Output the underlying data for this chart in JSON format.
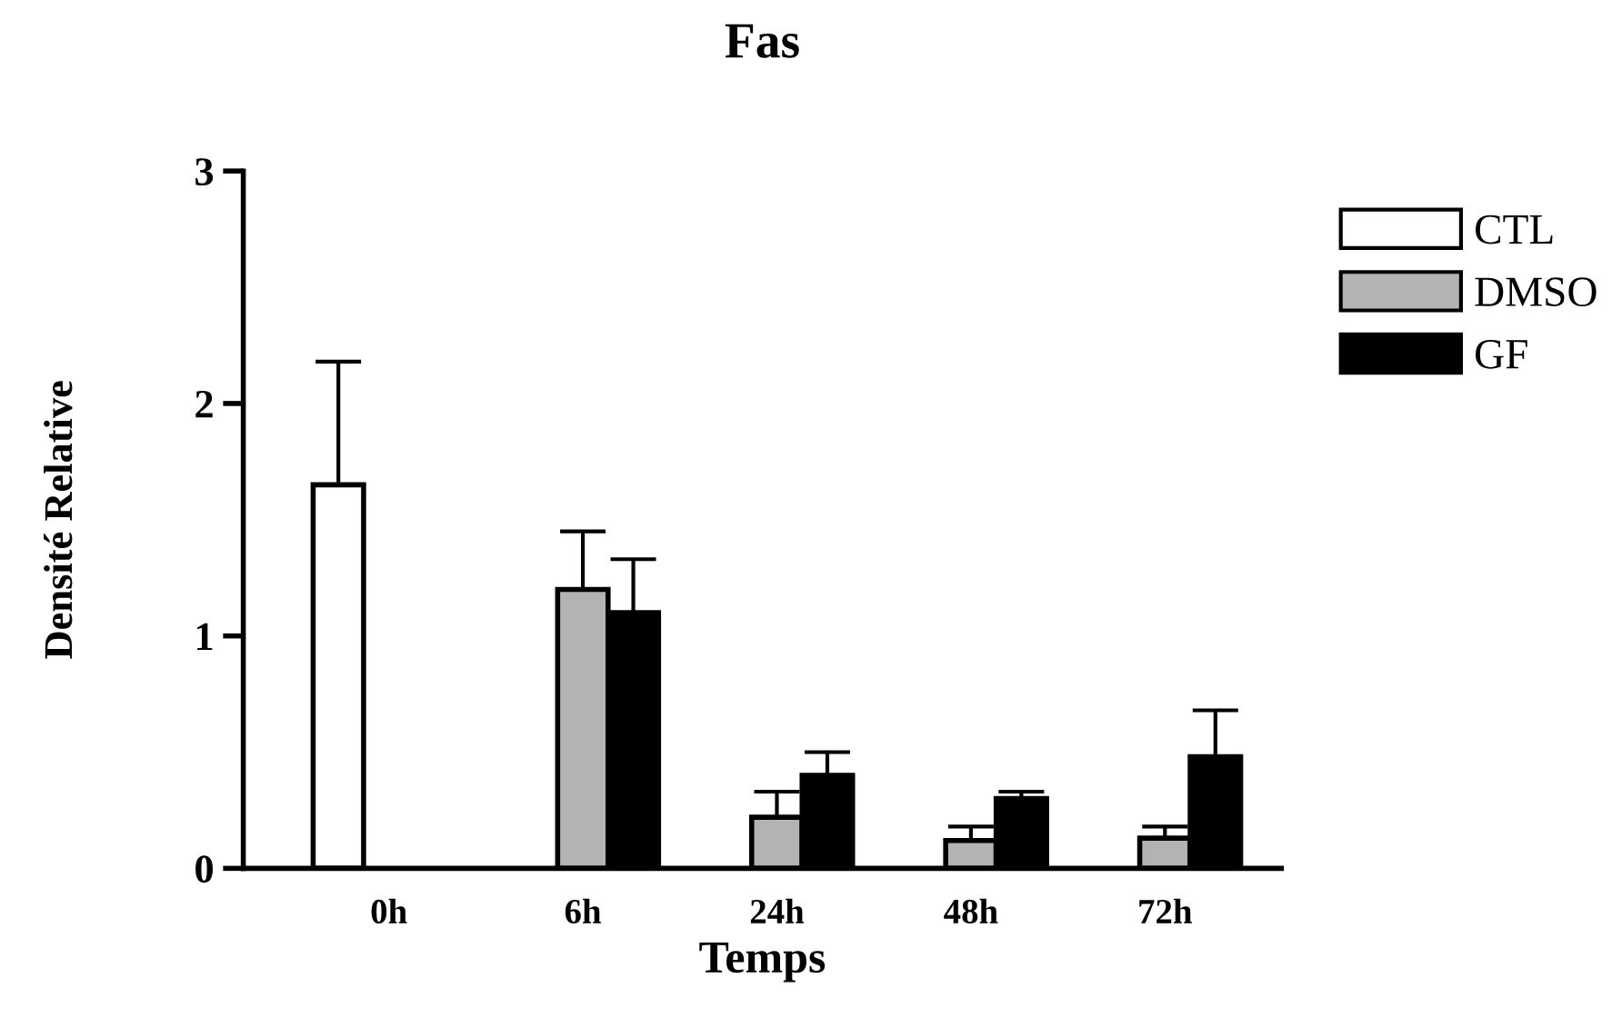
{
  "chart_data": {
    "type": "bar",
    "title": "Fas",
    "xlabel": "Temps",
    "ylabel": "Densité Relative",
    "categories": [
      "0h",
      "6h",
      "24h",
      "48h",
      "72h"
    ],
    "series": [
      {
        "name": "CTL",
        "color": "#ffffff",
        "values": [
          1.65,
          null,
          null,
          null,
          null
        ],
        "errors": [
          [
            1.65,
            2.18
          ],
          null,
          null,
          null,
          null
        ]
      },
      {
        "name": "DMSO",
        "color": "#b3b3b3",
        "values": [
          null,
          1.2,
          0.22,
          0.12,
          0.13
        ],
        "errors": [
          null,
          [
            1.2,
            1.45
          ],
          [
            0.22,
            0.33
          ],
          [
            0.12,
            0.18
          ],
          [
            0.13,
            0.18
          ]
        ]
      },
      {
        "name": "GF",
        "color": "#000000",
        "values": [
          null,
          1.1,
          0.4,
          0.3,
          0.48
        ],
        "errors": [
          null,
          [
            1.1,
            1.33
          ],
          [
            0.4,
            0.5
          ],
          [
            0.3,
            0.33
          ],
          [
            0.48,
            0.68
          ]
        ]
      }
    ],
    "ylim": [
      0,
      3
    ],
    "yticks": [
      0,
      1,
      2,
      3
    ],
    "grid": false,
    "legend": "top right"
  }
}
